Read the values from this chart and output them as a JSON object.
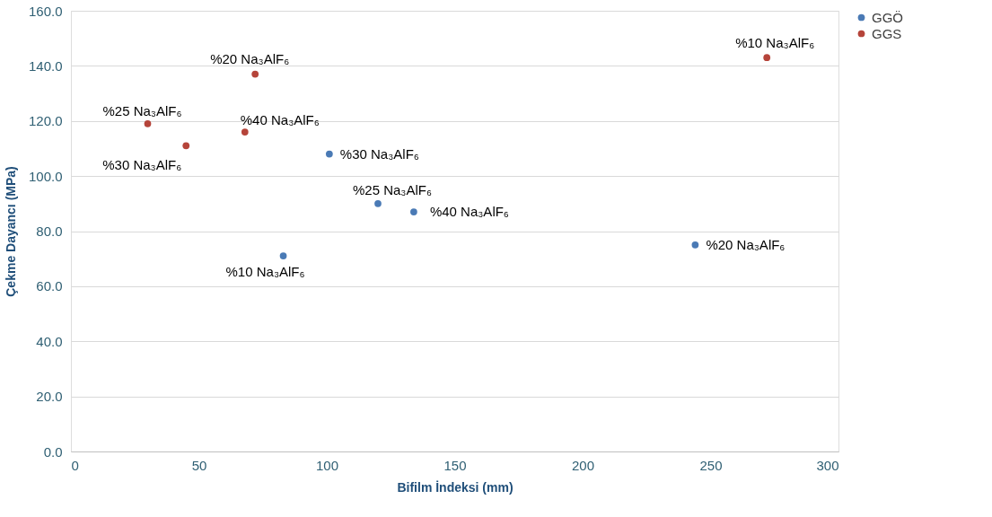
{
  "chart_data": {
    "type": "scatter",
    "xlabel": "Bifilm İndeksi (mm)",
    "ylabel": "Çekme Dayancı (MPa)",
    "xlim": [
      0,
      300
    ],
    "xticks": [
      0,
      50,
      100,
      150,
      200,
      250,
      300
    ],
    "ylim": [
      0,
      160
    ],
    "yticks": [
      {
        "value": 0,
        "label": "0.0"
      },
      {
        "value": 20,
        "label": "20.0"
      },
      {
        "value": 40,
        "label": "40.0"
      },
      {
        "value": 60,
        "label": "60.0"
      },
      {
        "value": 80,
        "label": "80.0"
      },
      {
        "value": 100,
        "label": "100.0"
      },
      {
        "value": 120,
        "label": "120.0"
      },
      {
        "value": 140,
        "label": "140.0"
      },
      {
        "value": 160,
        "label": "160.0"
      }
    ],
    "grid": "y",
    "legend": "right",
    "marker": "circle",
    "series": [
      {
        "name": "GGÖ",
        "color": "#4a7ab5",
        "x": [
          101,
          120,
          134,
          83,
          244
        ],
        "values": [
          108,
          90,
          87,
          71,
          75
        ]
      },
      {
        "name": "GGS",
        "color": "#b5443a",
        "x": [
          30,
          45,
          68,
          72,
          272
        ],
        "values": [
          119,
          111,
          116,
          137,
          143
        ]
      }
    ],
    "annotations": [
      {
        "text": "%30 Na₃AlF₆",
        "x": 101,
        "y": 108
      },
      {
        "text": "%25 Na₃AlF₆",
        "x": 120,
        "y": 90
      },
      {
        "text": "%40 Na₃AlF₆",
        "x": 134,
        "y": 87
      },
      {
        "text": "%10 Na₃AlF₆",
        "x": 83,
        "y": 71
      },
      {
        "text": "%20 Na₃AlF₆",
        "x": 244,
        "y": 75
      },
      {
        "text": "%25 Na₃AlF₆",
        "x": 30,
        "y": 119
      },
      {
        "text": "%30 Na₃AlF₆",
        "x": 45,
        "y": 111
      },
      {
        "text": "%40 Na₃AlF₆",
        "x": 68,
        "y": 116
      },
      {
        "text": "%20 Na₃AlF₆",
        "x": 72,
        "y": 137
      },
      {
        "text": "%10 Na₃AlF₆",
        "x": 272,
        "y": 143
      }
    ]
  }
}
